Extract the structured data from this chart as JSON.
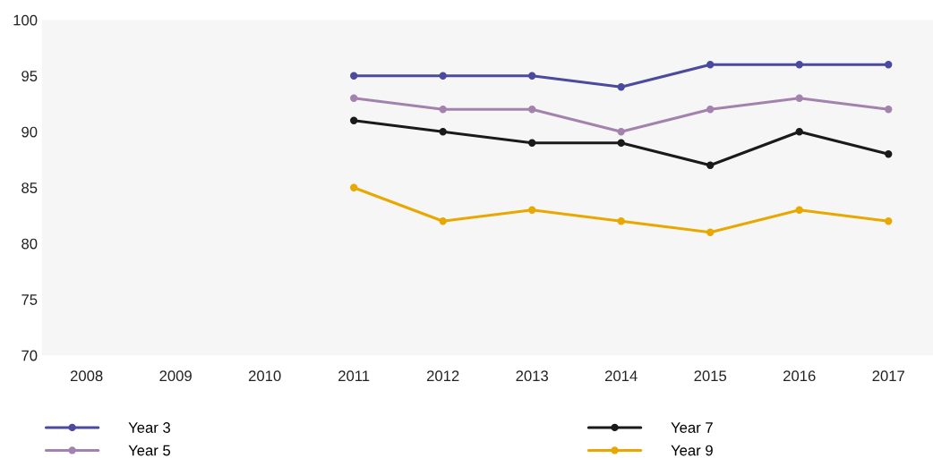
{
  "chart_data": {
    "type": "line",
    "categories": [
      "2008",
      "2009",
      "2010",
      "2011",
      "2012",
      "2013",
      "2014",
      "2015",
      "2016",
      "2017"
    ],
    "series": [
      {
        "name": "Year 3",
        "color": "#4b4a9e",
        "values": [
          null,
          null,
          null,
          95,
          95,
          95,
          94,
          96,
          96,
          96
        ]
      },
      {
        "name": "Year 5",
        "color": "#a383ad",
        "values": [
          null,
          null,
          null,
          93,
          92,
          92,
          90,
          92,
          93,
          92
        ]
      },
      {
        "name": "Year 7",
        "color": "#1a1a1a",
        "values": [
          null,
          null,
          null,
          91,
          90,
          89,
          89,
          87,
          90,
          88
        ]
      },
      {
        "name": "Year 9",
        "color": "#e8a800",
        "values": [
          null,
          null,
          null,
          85,
          82,
          83,
          82,
          81,
          83,
          82
        ]
      }
    ],
    "ylim": [
      70,
      100
    ],
    "yticks": [
      70,
      75,
      80,
      85,
      90,
      95,
      100
    ],
    "grid": false,
    "legend": "bottom left",
    "marker": "circle",
    "line_style": "solid"
  }
}
